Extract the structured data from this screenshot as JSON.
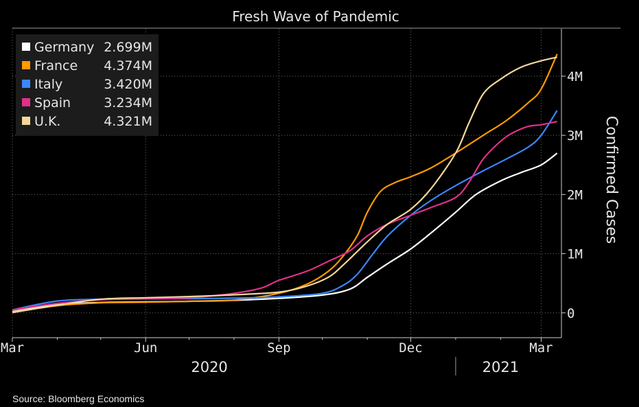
{
  "chart_data": {
    "type": "line",
    "title": "Fresh Wave of Pandemic",
    "ylabel": "Confirmed Cases",
    "source": "Source: Bloomberg Economics",
    "x_axis": {
      "type": "date",
      "range": [
        "2020-03-01",
        "2021-03-15"
      ],
      "ticks": [
        {
          "date": "2020-03-01",
          "label": "Mar"
        },
        {
          "date": "2020-06-01",
          "label": "Jun"
        },
        {
          "date": "2020-09-01",
          "label": "Sep"
        },
        {
          "date": "2020-12-01",
          "label": "Dec"
        },
        {
          "date": "2021-03-01",
          "label": "Mar"
        }
      ],
      "minor_ticks": [
        "2020-04-01",
        "2020-05-01",
        "2020-07-01",
        "2020-08-01",
        "2020-10-01",
        "2020-11-01",
        "2021-01-01",
        "2021-02-01"
      ],
      "years": [
        {
          "label": "2020",
          "date": "2020-07-15"
        },
        {
          "label": "2021",
          "date": "2021-02-01"
        }
      ],
      "year_divider": "2021-01-01"
    },
    "y_axis": {
      "side": "right",
      "range": [
        -420000,
        4800000
      ],
      "ticks": [
        {
          "value": 0,
          "label": "0"
        },
        {
          "value": 1000000,
          "label": "1M"
        },
        {
          "value": 2000000,
          "label": "2M"
        },
        {
          "value": 3000000,
          "label": "3M"
        },
        {
          "value": 4000000,
          "label": "4M"
        }
      ]
    },
    "grid": true,
    "legend_position": "top-left",
    "series": [
      {
        "name": "Germany",
        "last_value_label": "2.699M",
        "color": "#ffffff",
        "points": [
          [
            "2020-03-01",
            20000
          ],
          [
            "2020-04-01",
            140000
          ],
          [
            "2020-05-01",
            175000
          ],
          [
            "2020-06-01",
            185000
          ],
          [
            "2020-07-01",
            195000
          ],
          [
            "2020-08-01",
            212000
          ],
          [
            "2020-09-01",
            245000
          ],
          [
            "2020-10-01",
            300000
          ],
          [
            "2020-10-20",
            400000
          ],
          [
            "2020-11-01",
            600000
          ],
          [
            "2020-11-15",
            830000
          ],
          [
            "2020-12-01",
            1080000
          ],
          [
            "2020-12-15",
            1350000
          ],
          [
            "2021-01-01",
            1700000
          ],
          [
            "2021-01-15",
            2000000
          ],
          [
            "2021-02-01",
            2230000
          ],
          [
            "2021-02-15",
            2370000
          ],
          [
            "2021-03-01",
            2500000
          ],
          [
            "2021-03-12",
            2699000
          ]
        ]
      },
      {
        "name": "France",
        "last_value_label": "4.374M",
        "color": "#ff9a00",
        "points": [
          [
            "2020-03-01",
            10000
          ],
          [
            "2020-04-01",
            120000
          ],
          [
            "2020-05-01",
            170000
          ],
          [
            "2020-06-01",
            180000
          ],
          [
            "2020-07-01",
            195000
          ],
          [
            "2020-08-01",
            215000
          ],
          [
            "2020-09-01",
            330000
          ],
          [
            "2020-09-20",
            480000
          ],
          [
            "2020-10-05",
            700000
          ],
          [
            "2020-10-15",
            950000
          ],
          [
            "2020-10-25",
            1300000
          ],
          [
            "2020-11-01",
            1700000
          ],
          [
            "2020-11-10",
            2050000
          ],
          [
            "2020-11-20",
            2200000
          ],
          [
            "2020-12-01",
            2300000
          ],
          [
            "2020-12-15",
            2450000
          ],
          [
            "2021-01-01",
            2700000
          ],
          [
            "2021-01-20",
            3000000
          ],
          [
            "2021-02-05",
            3250000
          ],
          [
            "2021-02-20",
            3550000
          ],
          [
            "2021-03-01",
            3780000
          ],
          [
            "2021-03-12",
            4374000
          ]
        ]
      },
      {
        "name": "Italy",
        "last_value_label": "3.420M",
        "color": "#3a86ff",
        "points": [
          [
            "2020-03-01",
            50000
          ],
          [
            "2020-04-01",
            200000
          ],
          [
            "2020-05-01",
            230000
          ],
          [
            "2020-06-01",
            235000
          ],
          [
            "2020-07-01",
            240000
          ],
          [
            "2020-08-01",
            248000
          ],
          [
            "2020-09-01",
            270000
          ],
          [
            "2020-10-01",
            330000
          ],
          [
            "2020-10-15",
            460000
          ],
          [
            "2020-10-25",
            650000
          ],
          [
            "2020-11-05",
            1000000
          ],
          [
            "2020-11-15",
            1300000
          ],
          [
            "2020-12-01",
            1650000
          ],
          [
            "2020-12-15",
            1900000
          ],
          [
            "2021-01-01",
            2150000
          ],
          [
            "2021-01-20",
            2400000
          ],
          [
            "2021-02-05",
            2600000
          ],
          [
            "2021-02-20",
            2800000
          ],
          [
            "2021-03-01",
            3000000
          ],
          [
            "2021-03-12",
            3420000
          ]
        ]
      },
      {
        "name": "Spain",
        "last_value_label": "3.234M",
        "color": "#e0308a",
        "points": [
          [
            "2020-03-01",
            50000
          ],
          [
            "2020-04-01",
            160000
          ],
          [
            "2020-05-01",
            220000
          ],
          [
            "2020-06-01",
            240000
          ],
          [
            "2020-07-01",
            255000
          ],
          [
            "2020-08-01",
            330000
          ],
          [
            "2020-08-20",
            420000
          ],
          [
            "2020-09-01",
            550000
          ],
          [
            "2020-09-20",
            700000
          ],
          [
            "2020-10-05",
            870000
          ],
          [
            "2020-10-20",
            1050000
          ],
          [
            "2020-11-01",
            1300000
          ],
          [
            "2020-11-15",
            1500000
          ],
          [
            "2020-12-01",
            1650000
          ],
          [
            "2020-12-15",
            1780000
          ],
          [
            "2021-01-01",
            1950000
          ],
          [
            "2021-01-10",
            2200000
          ],
          [
            "2021-01-20",
            2600000
          ],
          [
            "2021-02-01",
            2900000
          ],
          [
            "2021-02-10",
            3050000
          ],
          [
            "2021-02-20",
            3150000
          ],
          [
            "2021-03-01",
            3180000
          ],
          [
            "2021-03-12",
            3234000
          ]
        ]
      },
      {
        "name": "U.K.",
        "last_value_label": "4.321M",
        "color": "#f3d79a",
        "points": [
          [
            "2020-03-01",
            5000
          ],
          [
            "2020-04-01",
            130000
          ],
          [
            "2020-05-01",
            230000
          ],
          [
            "2020-06-01",
            255000
          ],
          [
            "2020-07-01",
            275000
          ],
          [
            "2020-08-01",
            305000
          ],
          [
            "2020-09-01",
            350000
          ],
          [
            "2020-09-20",
            450000
          ],
          [
            "2020-10-05",
            600000
          ],
          [
            "2020-10-15",
            800000
          ],
          [
            "2020-11-01",
            1200000
          ],
          [
            "2020-11-15",
            1500000
          ],
          [
            "2020-12-01",
            1750000
          ],
          [
            "2020-12-15",
            2100000
          ],
          [
            "2021-01-01",
            2700000
          ],
          [
            "2021-01-10",
            3200000
          ],
          [
            "2021-01-20",
            3700000
          ],
          [
            "2021-02-01",
            3950000
          ],
          [
            "2021-02-15",
            4150000
          ],
          [
            "2021-03-01",
            4260000
          ],
          [
            "2021-03-12",
            4321000
          ]
        ]
      }
    ]
  }
}
